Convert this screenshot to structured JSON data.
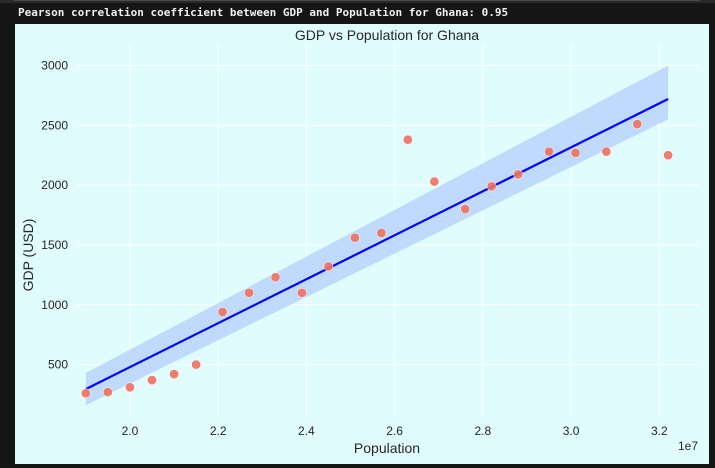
{
  "console": {
    "output_line": "Pearson correlation coefficient between GDP and Population for Ghana: 0.95"
  },
  "colors": {
    "page_background": "#151515",
    "figure_background": "#e1fcfc",
    "scatter_point": "#f0705f",
    "regression_line": "#0000ff",
    "confidence_band": "#b8d3fb"
  },
  "chart_data": {
    "type": "scatter",
    "title": "GDP vs Population for Ghana",
    "xlabel": "Population",
    "ylabel": "GDP (USD)",
    "x_offset_label": "1e7",
    "xlim": [
      18.8,
      32.9
    ],
    "ylim": [
      70,
      3180
    ],
    "x_ticks": [
      20,
      22,
      24,
      26,
      28,
      30,
      32
    ],
    "x_tick_labels": [
      "2.0",
      "2.2",
      "2.4",
      "2.6",
      "2.8",
      "3.0",
      "3.2"
    ],
    "y_ticks": [
      500,
      1000,
      1500,
      2000,
      2500,
      3000
    ],
    "y_tick_labels": [
      "500",
      "1000",
      "1500",
      "2000",
      "2500",
      "3000"
    ],
    "grid": true,
    "points": [
      {
        "x": 19.0,
        "y": 260
      },
      {
        "x": 19.5,
        "y": 270
      },
      {
        "x": 20.0,
        "y": 310
      },
      {
        "x": 20.5,
        "y": 370
      },
      {
        "x": 21.0,
        "y": 420
      },
      {
        "x": 21.5,
        "y": 500
      },
      {
        "x": 22.1,
        "y": 940
      },
      {
        "x": 22.7,
        "y": 1100
      },
      {
        "x": 23.3,
        "y": 1230
      },
      {
        "x": 23.9,
        "y": 1100
      },
      {
        "x": 24.5,
        "y": 1320
      },
      {
        "x": 25.1,
        "y": 1560
      },
      {
        "x": 25.7,
        "y": 1600
      },
      {
        "x": 26.3,
        "y": 2380
      },
      {
        "x": 26.9,
        "y": 2030
      },
      {
        "x": 27.6,
        "y": 1800
      },
      {
        "x": 28.2,
        "y": 1990
      },
      {
        "x": 28.8,
        "y": 2090
      },
      {
        "x": 29.5,
        "y": 2280
      },
      {
        "x": 30.1,
        "y": 2270
      },
      {
        "x": 30.8,
        "y": 2280
      },
      {
        "x": 31.5,
        "y": 2510
      },
      {
        "x": 32.2,
        "y": 2250
      }
    ],
    "regression": {
      "x": [
        19.0,
        32.2
      ],
      "y": [
        295,
        2720
      ],
      "ci_upper": [
        430,
        3000
      ],
      "ci_lower": [
        160,
        2550
      ]
    }
  }
}
